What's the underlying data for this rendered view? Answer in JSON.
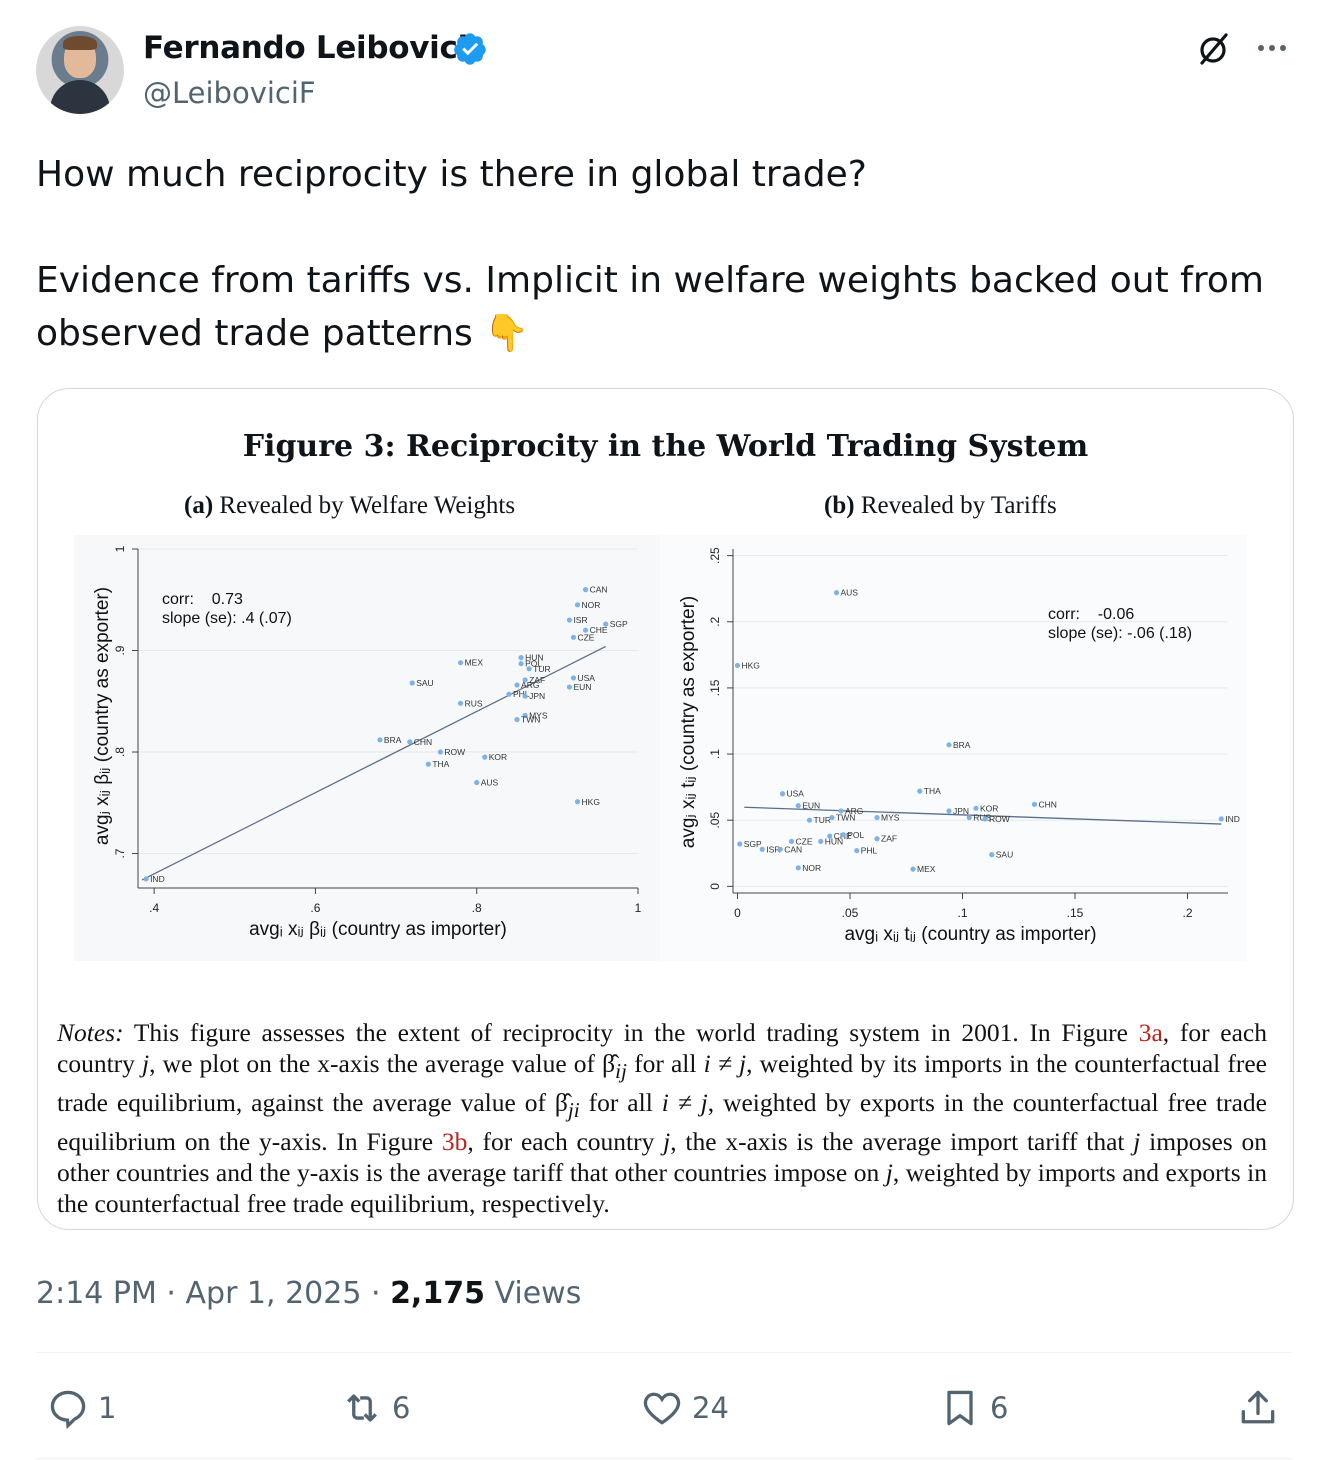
{
  "author": {
    "name": "Fernando Leibovici",
    "handle": "@LeiboviciF",
    "verified": true,
    "badge_color": "#1d9bf0"
  },
  "tweet": {
    "text": "How much reciprocity is there in global trade?\n\nEvidence from tariffs vs. Implicit in welfare weights backed out from observed trade patterns 👇"
  },
  "figure": {
    "title": "Figure 3: Reciprocity in the World Trading System",
    "panel_a_label": "(a)",
    "panel_a_title": "Revealed by Welfare Weights",
    "panel_b_label": "(b)",
    "panel_b_title": "Revealed by Tariffs",
    "notes_lead": "Notes:",
    "notes_1": " This figure assesses the extent of reciprocity in the world trading system in 2001. In Figure ",
    "ref_3a": "3a",
    "notes_2": ", for each country ",
    "notes_j": "j",
    "notes_3": ", we plot on the x-axis the average value of β̂",
    "notes_ij": "ij",
    "notes_4": " for all ",
    "notes_i_ne_j": "i ≠ j",
    "notes_5": ", weighted by its imports in the counterfactual free trade equilibrium, against the average value of β̂",
    "notes_ji": "ji",
    "notes_6": " for all ",
    "notes_7": ", weighted by exports in the counterfactual free trade equilibrium on the y-axis. In Figure ",
    "ref_3b": "3b",
    "notes_8": ", for each country ",
    "notes_9": ", the x-axis is the average import tariff that ",
    "notes_10": " imposes on other countries and the y-axis is the average tariff that other countries impose on ",
    "notes_11": ", weighted by imports and exports in the counterfactual free trade equilibrium, respectively."
  },
  "chart_data": [
    {
      "type": "scatter",
      "title": "(a) Revealed by Welfare Weights",
      "xlabel": "avgᵢ xᵢⱼ βᵢⱼ (country as importer)",
      "ylabel": "avgⱼ xᵢⱼ βᵢⱼ (country as exporter)",
      "xlim": [
        0.38,
        1.0
      ],
      "ylim": [
        0.67,
        1.0
      ],
      "xticks": [
        ".4",
        ".6",
        ".8",
        "1"
      ],
      "yticks": [
        ".7",
        ".8",
        ".9",
        "1"
      ],
      "grid": true,
      "annotation": [
        "corr:    0.73",
        "slope (se): .4 (.07)"
      ],
      "fit_line": {
        "intercept": 0.52,
        "slope": 0.4
      },
      "points": [
        {
          "label": "IND",
          "x": 0.39,
          "y": 0.675
        },
        {
          "label": "BRA",
          "x": 0.68,
          "y": 0.812
        },
        {
          "label": "CHN",
          "x": 0.717,
          "y": 0.81
        },
        {
          "label": "ROW",
          "x": 0.755,
          "y": 0.8
        },
        {
          "label": "THA",
          "x": 0.74,
          "y": 0.788
        },
        {
          "label": "SAU",
          "x": 0.72,
          "y": 0.868
        },
        {
          "label": "MEX",
          "x": 0.78,
          "y": 0.888
        },
        {
          "label": "RUS",
          "x": 0.78,
          "y": 0.848
        },
        {
          "label": "AUS",
          "x": 0.8,
          "y": 0.77
        },
        {
          "label": "KOR",
          "x": 0.81,
          "y": 0.795
        },
        {
          "label": "HUN",
          "x": 0.855,
          "y": 0.893
        },
        {
          "label": "POL",
          "x": 0.855,
          "y": 0.887
        },
        {
          "label": "TUR",
          "x": 0.865,
          "y": 0.882
        },
        {
          "label": "ZAF",
          "x": 0.86,
          "y": 0.871
        },
        {
          "label": "ARG",
          "x": 0.85,
          "y": 0.866
        },
        {
          "label": "PHL",
          "x": 0.84,
          "y": 0.857
        },
        {
          "label": "JPN",
          "x": 0.86,
          "y": 0.855
        },
        {
          "label": "MYS",
          "x": 0.86,
          "y": 0.836
        },
        {
          "label": "TWN",
          "x": 0.85,
          "y": 0.832
        },
        {
          "label": "CAN",
          "x": 0.935,
          "y": 0.96
        },
        {
          "label": "NOR",
          "x": 0.925,
          "y": 0.945
        },
        {
          "label": "ISR",
          "x": 0.915,
          "y": 0.93
        },
        {
          "label": "CHE",
          "x": 0.935,
          "y": 0.92
        },
        {
          "label": "SGP",
          "x": 0.96,
          "y": 0.926
        },
        {
          "label": "CZE",
          "x": 0.92,
          "y": 0.913
        },
        {
          "label": "USA",
          "x": 0.92,
          "y": 0.873
        },
        {
          "label": "EUN",
          "x": 0.915,
          "y": 0.864
        },
        {
          "label": "HKG",
          "x": 0.925,
          "y": 0.751
        }
      ]
    },
    {
      "type": "scatter",
      "title": "(b) Revealed by Tariffs",
      "xlabel": "avgᵢ xᵢⱼ tᵢⱼ (country as importer)",
      "ylabel": "avgⱼ xᵢⱼ tᵢⱼ (country as exporter)",
      "xlim": [
        -0.002,
        0.218
      ],
      "ylim": [
        -0.002,
        0.255
      ],
      "xticks": [
        "0",
        ".05",
        ".1",
        ".15",
        ".2"
      ],
      "yticks": [
        "0",
        ".05",
        ".1",
        ".15",
        ".2",
        ".25"
      ],
      "grid": true,
      "annotation": [
        "corr:    -0.06",
        "slope (se): -.06 (.18)"
      ],
      "fit_line": {
        "intercept": 0.06,
        "slope": -0.06
      },
      "points": [
        {
          "label": "AUS",
          "x": 0.044,
          "y": 0.222
        },
        {
          "label": "HKG",
          "x": 0.0,
          "y": 0.167
        },
        {
          "label": "BRA",
          "x": 0.094,
          "y": 0.107
        },
        {
          "label": "THA",
          "x": 0.081,
          "y": 0.072
        },
        {
          "label": "CHN",
          "x": 0.132,
          "y": 0.062
        },
        {
          "label": "IND",
          "x": 0.215,
          "y": 0.051
        },
        {
          "label": "USA",
          "x": 0.02,
          "y": 0.07
        },
        {
          "label": "EUN",
          "x": 0.027,
          "y": 0.061
        },
        {
          "label": "TUR",
          "x": 0.032,
          "y": 0.05
        },
        {
          "label": "TWN",
          "x": 0.042,
          "y": 0.052
        },
        {
          "label": "ARG",
          "x": 0.046,
          "y": 0.057
        },
        {
          "label": "MYS",
          "x": 0.062,
          "y": 0.052
        },
        {
          "label": "JPN",
          "x": 0.094,
          "y": 0.057
        },
        {
          "label": "KOR",
          "x": 0.106,
          "y": 0.059
        },
        {
          "label": "RUS",
          "x": 0.103,
          "y": 0.052
        },
        {
          "label": "ROW",
          "x": 0.11,
          "y": 0.051
        },
        {
          "label": "SGP",
          "x": 0.001,
          "y": 0.032
        },
        {
          "label": "ISR",
          "x": 0.011,
          "y": 0.028
        },
        {
          "label": "CAN",
          "x": 0.019,
          "y": 0.028
        },
        {
          "label": "CZE",
          "x": 0.024,
          "y": 0.034
        },
        {
          "label": "HUN",
          "x": 0.037,
          "y": 0.034
        },
        {
          "label": "CHE",
          "x": 0.041,
          "y": 0.038
        },
        {
          "label": "POL",
          "x": 0.047,
          "y": 0.039
        },
        {
          "label": "ZAF",
          "x": 0.062,
          "y": 0.036
        },
        {
          "label": "PHL",
          "x": 0.053,
          "y": 0.027
        },
        {
          "label": "NOR",
          "x": 0.027,
          "y": 0.014
        },
        {
          "label": "MEX",
          "x": 0.078,
          "y": 0.013
        },
        {
          "label": "SAU",
          "x": 0.113,
          "y": 0.024
        }
      ]
    }
  ],
  "meta": {
    "time": "2:14 PM",
    "dot1": " · ",
    "date": "Apr 1, 2025",
    "dot2": " · ",
    "views_count": "2,175",
    "views_label": " Views"
  },
  "actions": {
    "replies": "1",
    "reposts": "6",
    "likes": "24",
    "bookmarks": "6"
  },
  "icons": [
    "verified-badge-icon",
    "grok-icon",
    "more-icon",
    "reply-icon",
    "repost-icon",
    "like-icon",
    "bookmark-icon",
    "share-icon",
    "pointing-down-emoji"
  ]
}
